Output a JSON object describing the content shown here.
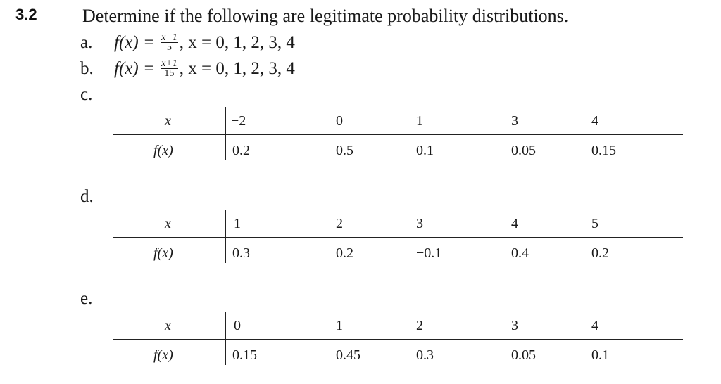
{
  "problem": {
    "number": "3.2",
    "prompt": "Determine if the following are legitimate probability distributions."
  },
  "formula_items": [
    {
      "label": "a.",
      "lhs": "f(x) =",
      "frac_num": "x−1",
      "frac_den": "5",
      "rhs": ", x = 0, 1, 2, 3, 4"
    },
    {
      "label": "b.",
      "lhs": "f(x) =",
      "frac_num": "x+1",
      "frac_den": "15",
      "rhs": ", x = 0, 1, 2, 3, 4"
    }
  ],
  "table_items": [
    {
      "label": "c.",
      "x_header": "x",
      "f_header": "f(x)",
      "x_values": [
        "−2",
        "0",
        "1",
        "3",
        "4"
      ],
      "f_values": [
        "0.2",
        "0.5",
        "0.1",
        "0.05",
        "0.15"
      ]
    },
    {
      "label": "d.",
      "x_header": "x",
      "f_header": "f(x)",
      "x_values": [
        "1",
        "2",
        "3",
        "4",
        "5"
      ],
      "f_values": [
        "0.3",
        "0.2",
        "−0.1",
        "0.4",
        "0.2"
      ]
    },
    {
      "label": "e.",
      "x_header": "x",
      "f_header": "f(x)",
      "x_values": [
        "0",
        "1",
        "2",
        "3",
        "4"
      ],
      "f_values": [
        "0.15",
        "0.45",
        "0.3",
        "0.05",
        "0.1"
      ]
    }
  ]
}
